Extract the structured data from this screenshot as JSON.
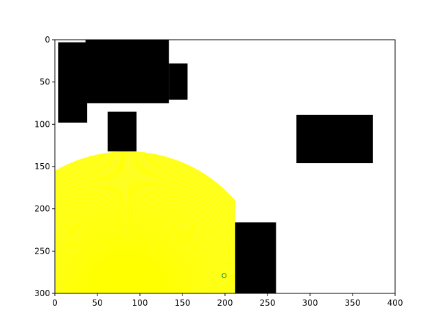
{
  "chart_data": {
    "type": "occupancy-map",
    "title": "",
    "xlabel": "",
    "ylabel": "",
    "xlim": [
      0,
      400
    ],
    "ylim": [
      300,
      0
    ],
    "y_inverted": true,
    "grid": false,
    "x_ticks": [
      0,
      50,
      100,
      150,
      200,
      250,
      300,
      350,
      400
    ],
    "y_ticks": [
      0,
      50,
      100,
      150,
      200,
      250,
      300
    ],
    "obstacle_color": "#000000",
    "sensor_color": "#ffff00",
    "robot_color": "#2ca02c",
    "obstacles": [
      {
        "x0": 4,
        "y0": 3,
        "x1": 38,
        "y1": 98
      },
      {
        "x0": 36,
        "y0": 0,
        "x1": 134,
        "y1": 75
      },
      {
        "x0": 134,
        "y0": 28,
        "x1": 156,
        "y1": 71
      },
      {
        "x0": 62,
        "y0": 85,
        "x1": 96,
        "y1": 132
      },
      {
        "x0": 284,
        "y0": 89,
        "x1": 374,
        "y1": 146
      },
      {
        "x0": 212,
        "y0": 216,
        "x1": 260,
        "y1": 300
      }
    ],
    "sensor": {
      "origin": [
        85,
        300
      ],
      "radius": 168,
      "ray_count": 180,
      "clip_x_max": 212
    },
    "robot": {
      "x": 199,
      "y": 279
    }
  }
}
